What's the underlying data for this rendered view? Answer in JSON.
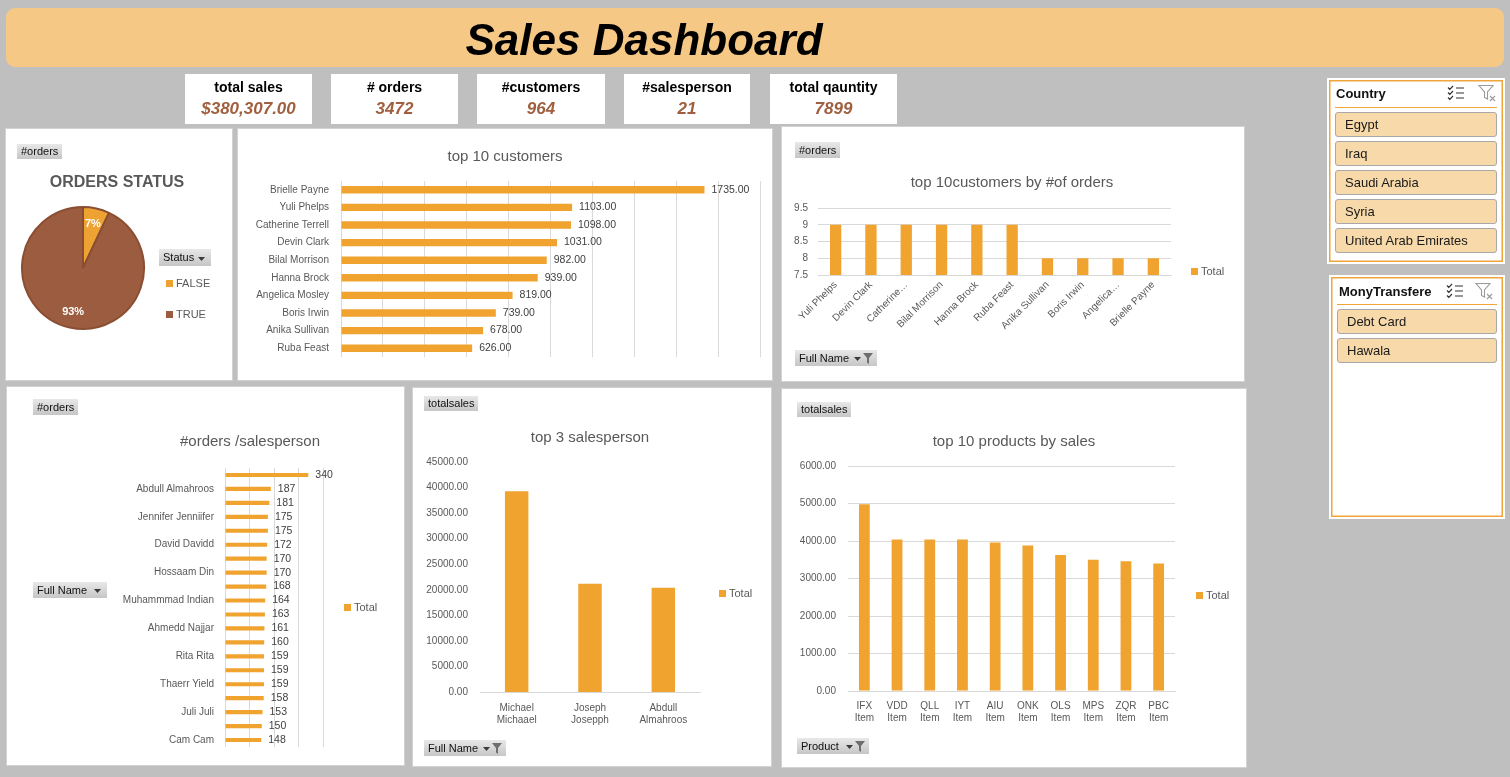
{
  "chart_data": [
    {
      "type": "other",
      "title": "Sales Dashboard"
    },
    {
      "type": "other",
      "title": "total sales",
      "annotations": [
        "$380,307.00"
      ]
    },
    {
      "type": "other",
      "title": "# orders",
      "annotations": [
        "3472"
      ]
    },
    {
      "type": "other",
      "title": "#customers",
      "annotations": [
        "964"
      ]
    },
    {
      "type": "other",
      "title": "#salesperson",
      "annotations": [
        "21"
      ]
    },
    {
      "type": "other",
      "title": "total qauntity",
      "annotations": [
        "7899"
      ]
    },
    {
      "type": "other",
      "title": "Country",
      "annotations": [
        "Egypt",
        "Iraq",
        "Saudi Arabia",
        "Syria",
        "United Arab Emirates"
      ]
    },
    {
      "type": "pie",
      "title": "ORDERS STATUS",
      "categories": [
        "FALSE",
        "TRUE"
      ],
      "values": [
        7,
        93
      ],
      "colors": [
        "#eda232",
        "#9c5c3f"
      ],
      "value_labels": [
        "7%",
        "93%"
      ],
      "legend": "right",
      "legend_title": "Status",
      "annotations": [
        "#orders"
      ]
    },
    {
      "type": "bar",
      "orientation": "horizontal",
      "title": "top 10 customers",
      "categories": [
        "Brielle Payne",
        "Yuli Phelps",
        "Catherine Terrell",
        "Devin Clark",
        "Bilal Morrison",
        "Hanna Brock",
        "Angelica Mosley",
        "Boris Irwin",
        "Anika Sullivan",
        "Ruba Feast"
      ],
      "values": [
        1735,
        1103,
        1098,
        1031,
        982,
        939,
        819,
        739,
        678,
        626
      ],
      "value_labels": [
        "1735.00",
        "1103.00",
        "1098.00",
        "1031.00",
        "982.00",
        "939.00",
        "819.00",
        "739.00",
        "678.00",
        "626.00"
      ],
      "color": "#f0a32f",
      "xlim": [
        0,
        2000
      ],
      "xticks": [
        {
          "value": 0,
          "label": null
        },
        {
          "value": 200,
          "label": null
        },
        {
          "value": 400,
          "label": null
        },
        {
          "value": 600,
          "label": null
        },
        {
          "value": 800,
          "label": null
        },
        {
          "value": 1000,
          "label": null
        },
        {
          "value": 1200,
          "label": null
        },
        {
          "value": 1400,
          "label": null
        },
        {
          "value": 1600,
          "label": null
        },
        {
          "value": 1800,
          "label": null
        },
        {
          "value": 2000,
          "label": null
        }
      ],
      "grid": "x",
      "tick_labels": "y"
    },
    {
      "type": "bar",
      "title": "top 10customers by #of orders",
      "categories": [
        "Yuli Phelps",
        "Devin Clark",
        "Catherine…",
        "Bilal Morrison",
        "Hanna Brock",
        "Ruba Feast",
        "Anika Sullivan",
        "Boris Irwin",
        "Angelica…",
        "Brielle Payne"
      ],
      "series": [
        {
          "name": "Total",
          "color": "#f0a32f",
          "values": [
            9,
            9,
            9,
            9,
            9,
            9,
            8,
            8,
            8,
            8
          ]
        }
      ],
      "ylim": [
        7.5,
        9.5
      ],
      "yticks": [
        7.5,
        8,
        8.5,
        9,
        9.5
      ],
      "grid": "y",
      "legend": "right",
      "annotations": [
        "#orders",
        "Full Name"
      ]
    },
    {
      "type": "other",
      "title": "MonyTransfere",
      "annotations": [
        "Debt Card",
        "Hawala"
      ]
    },
    {
      "type": "bar",
      "orientation": "horizontal",
      "title": "#orders /salesperson",
      "categories": [
        null,
        "Abdull Almahroos",
        null,
        "Jennifer Jenniifer",
        null,
        "David Davidd",
        null,
        "Hossaam Din",
        null,
        "Muhammmad Indian",
        null,
        "Ahmedd Najjar",
        null,
        "Rita Rita",
        null,
        "Thaerr Yield",
        null,
        "Juli Juli",
        null,
        "Cam Cam"
      ],
      "series": [
        {
          "name": "Total",
          "color": "#f0a32f",
          "values": [
            340,
            187,
            181,
            175,
            175,
            172,
            170,
            170,
            168,
            164,
            163,
            161,
            160,
            159,
            159,
            159,
            158,
            153,
            150,
            148
          ]
        }
      ],
      "data_labels": true,
      "xlim": [
        0,
        400
      ],
      "xticks": [
        {
          "value": 0,
          "label": null
        },
        {
          "value": 100,
          "label": null
        },
        {
          "value": 200,
          "label": null
        },
        {
          "value": 300,
          "label": null
        },
        {
          "value": 400,
          "label": null
        }
      ],
      "grid": "x",
      "tick_labels": "y",
      "legend": "right",
      "annotations": [
        "#orders",
        "Full Name"
      ]
    },
    {
      "type": "bar",
      "title": "top 3 salesperson",
      "categories": [
        "Michael Michaael",
        "Joseph Josepph",
        "Abdull Almahroos"
      ],
      "series": [
        {
          "name": "Total",
          "color": "#f0a32f",
          "values": [
            39300,
            21200,
            20400
          ]
        }
      ],
      "ylim": [
        0,
        45000
      ],
      "yticks": [
        {
          "value": 0,
          "label": "0.00"
        },
        {
          "value": 5000,
          "label": "5000.00"
        },
        {
          "value": 10000,
          "label": "10000.00"
        },
        {
          "value": 15000,
          "label": "15000.00"
        },
        {
          "value": 20000,
          "label": "20000.00"
        },
        {
          "value": 25000,
          "label": "25000.00"
        },
        {
          "value": 30000,
          "label": "30000.00"
        },
        {
          "value": 35000,
          "label": "35000.00"
        },
        {
          "value": 40000,
          "label": "40000.00"
        },
        {
          "value": 45000,
          "label": "45000.00"
        }
      ],
      "legend": "right",
      "annotations": [
        "totalsales",
        "Full Name"
      ]
    },
    {
      "type": "bar",
      "title": "top 10 products by sales",
      "categories": [
        "IFX Item",
        "VDD Item",
        "QLL Item",
        "IYT Item",
        "AIU Item",
        "ONK Item",
        "OLS Item",
        "MPS Item",
        "ZQR Item",
        "PBC Item"
      ],
      "series": [
        {
          "name": "Total",
          "color": "#f0a32f",
          "values": [
            4980,
            4040,
            4040,
            4040,
            3960,
            3880,
            3630,
            3500,
            3460,
            3400
          ]
        }
      ],
      "ylim": [
        0,
        6000
      ],
      "yticks": [
        {
          "value": 0,
          "label": "0.00"
        },
        {
          "value": 1000,
          "label": "1000.00"
        },
        {
          "value": 2000,
          "label": "2000.00"
        },
        {
          "value": 3000,
          "label": "3000.00"
        },
        {
          "value": 4000,
          "label": "4000.00"
        },
        {
          "value": 5000,
          "label": "5000.00"
        },
        {
          "value": 6000,
          "label": "6000.00"
        }
      ],
      "grid": "y",
      "legend": "right",
      "annotations": [
        "totalsales",
        "Product"
      ]
    }
  ]
}
